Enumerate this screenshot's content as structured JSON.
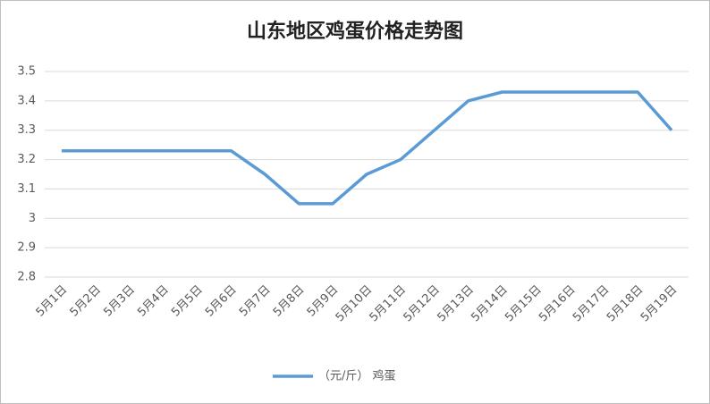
{
  "chart_data": {
    "type": "line",
    "title": "山东地区鸡蛋价格走势图",
    "categories": [
      "5月1日",
      "5月2日",
      "5月3日",
      "5月4日",
      "5月5日",
      "5月6日",
      "5月7日",
      "5月8日",
      "5月9日",
      "5月10日",
      "5月11日",
      "5月12日",
      "5月13日",
      "5月14日",
      "5月15日",
      "5月16日",
      "5月17日",
      "5月18日",
      "5月19日"
    ],
    "series": [
      {
        "name": "（元/斤） 鸡蛋",
        "color": "#5b9bd5",
        "values": [
          3.23,
          3.23,
          3.23,
          3.23,
          3.23,
          3.23,
          3.15,
          3.05,
          3.05,
          3.15,
          3.2,
          3.3,
          3.4,
          3.43,
          3.43,
          3.43,
          3.43,
          3.43,
          3.3
        ]
      }
    ],
    "ylim": [
      2.8,
      3.5
    ],
    "yticks": [
      2.8,
      2.9,
      3,
      3.1,
      3.2,
      3.3,
      3.4,
      3.5
    ],
    "grid": true,
    "legend": "bottom"
  }
}
